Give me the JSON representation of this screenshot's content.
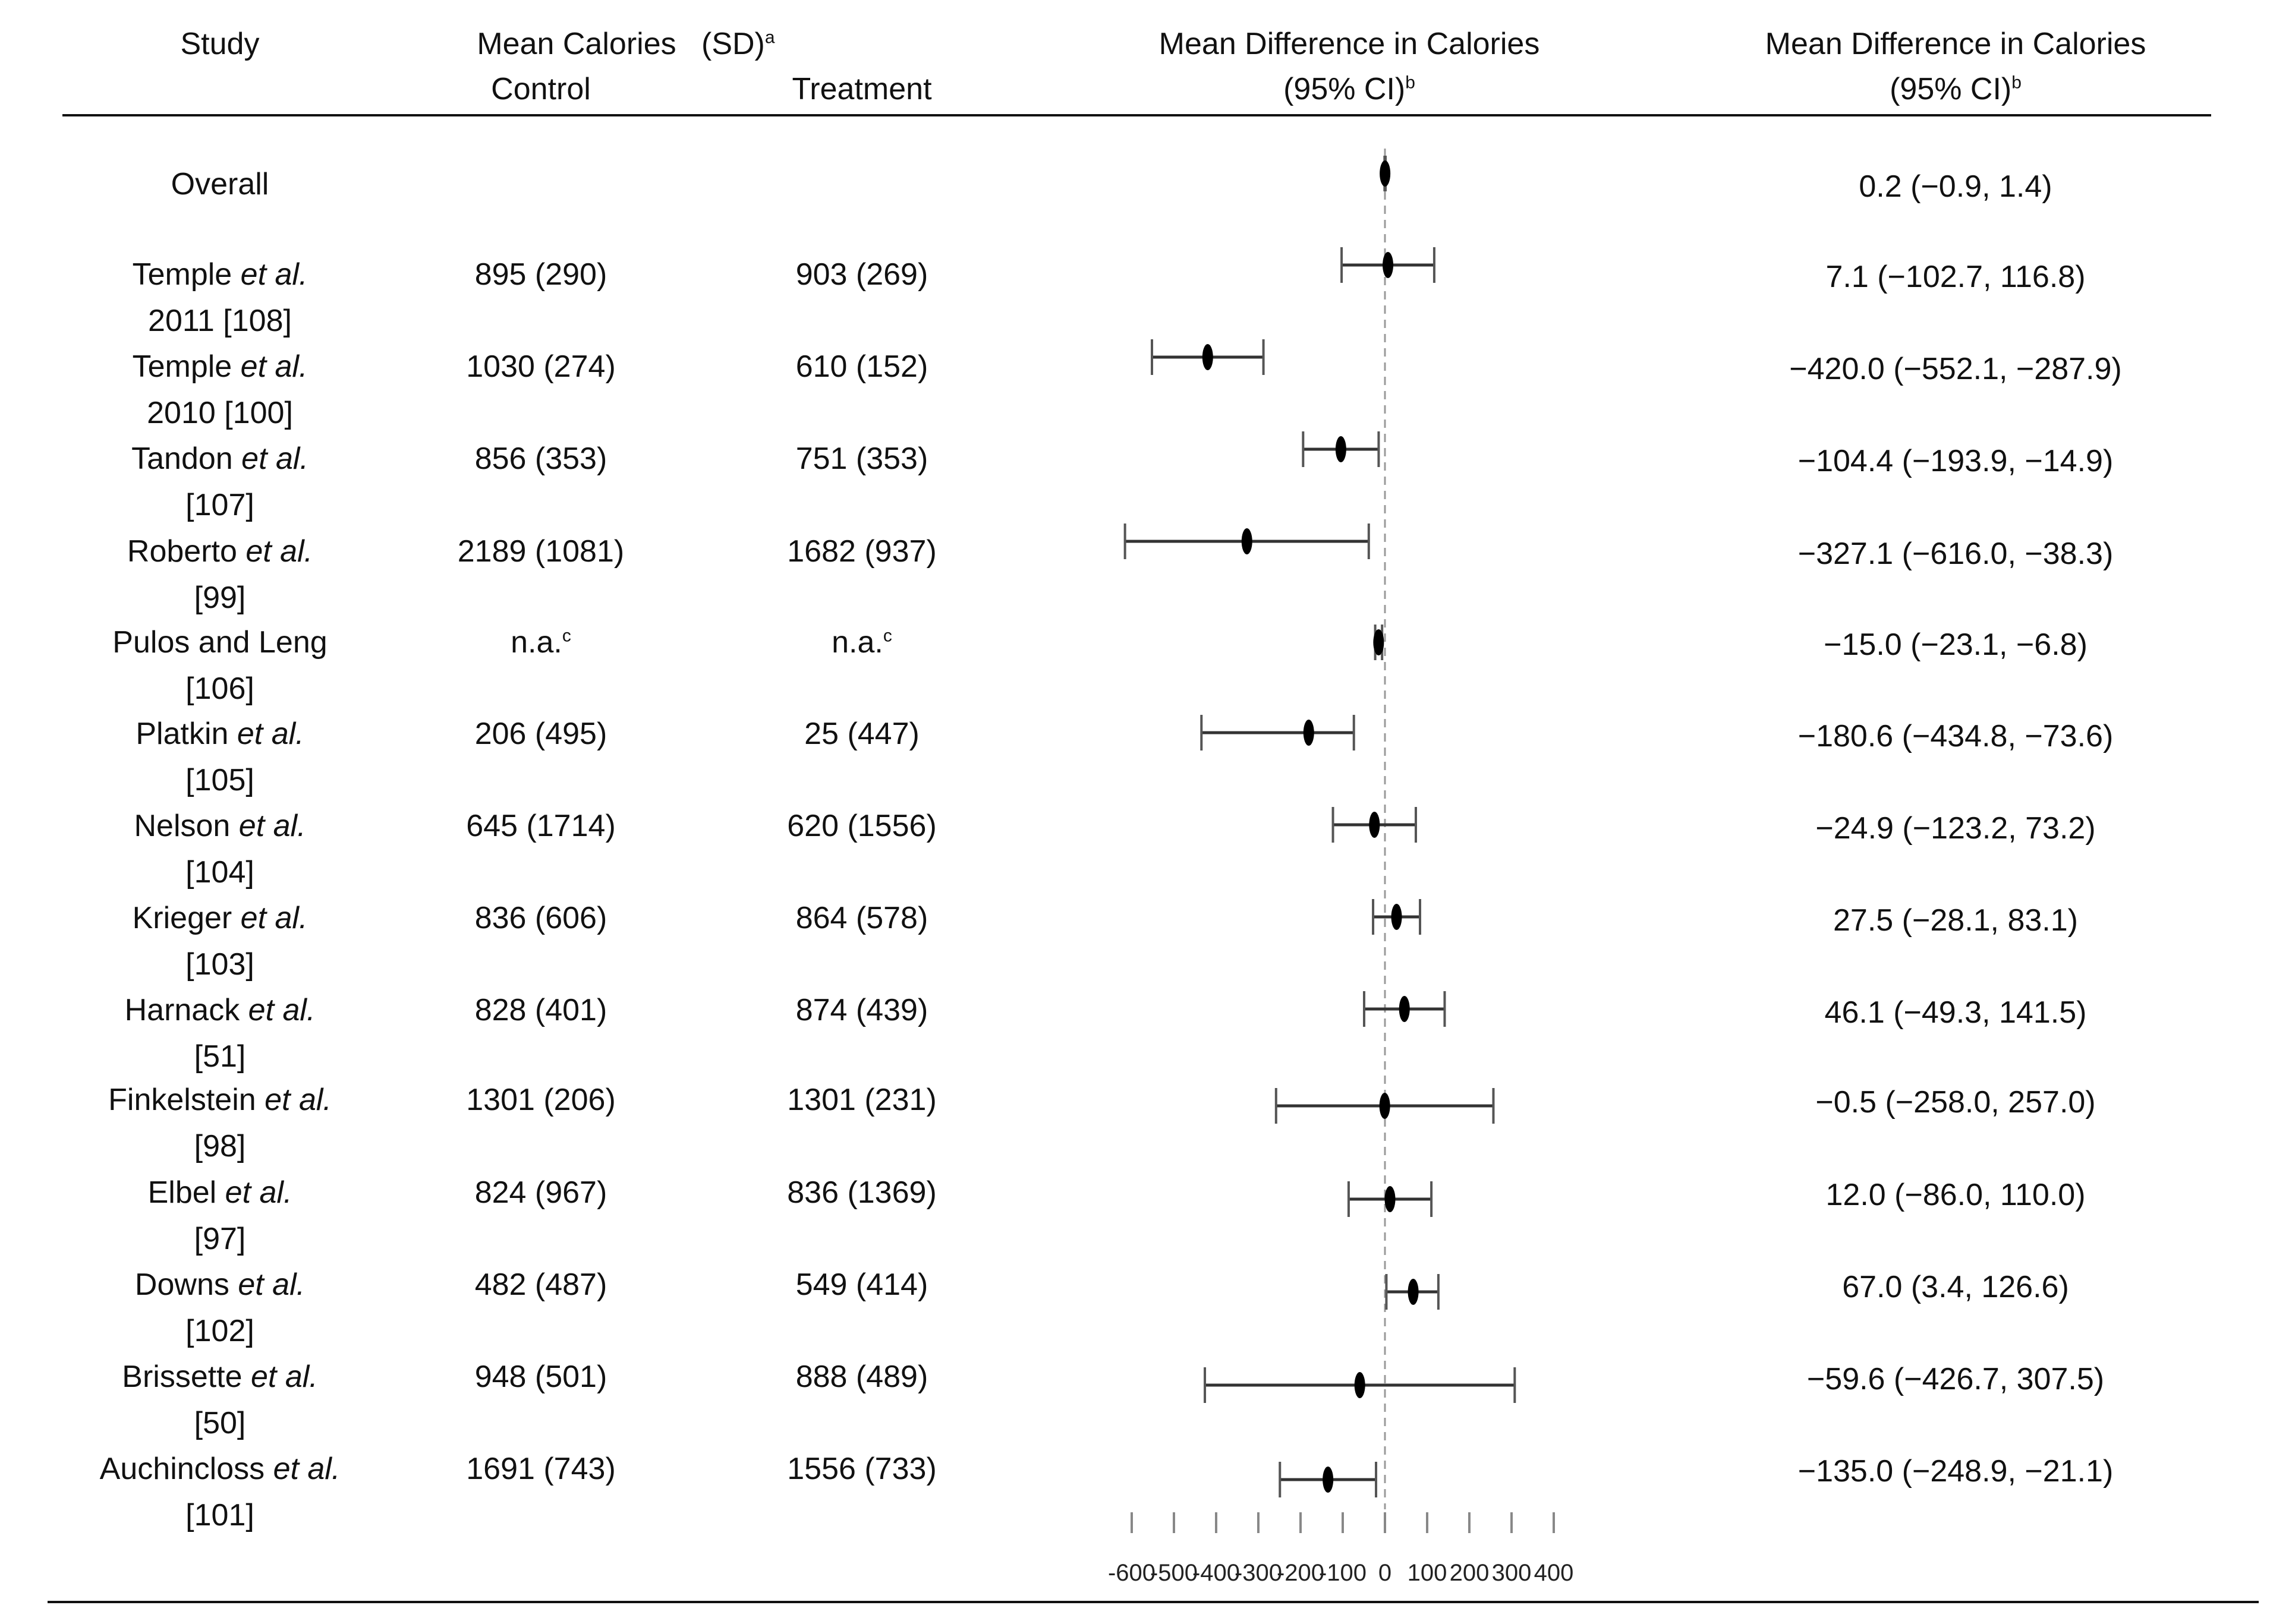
{
  "header": {
    "study": "Study",
    "mean_calories": "Mean Calories",
    "sd_label": "(SD)",
    "sd_sup": "a",
    "control": "Control",
    "treatment": "Treatment",
    "md_title": "Mean Difference in Calories",
    "md_ci": "(95% CI)",
    "md_sup": "b",
    "md_title_2": "Mean Difference in Calories",
    "md_ci_2": "(95% CI)",
    "md_sup_2": "b"
  },
  "rows": [
    {
      "study_a": "Overall",
      "study_i": "",
      "study_b": "",
      "control": "",
      "treatment": "",
      "ci_text": "0.2 (−0.9, 1.4)"
    },
    {
      "study_a": "Temple ",
      "study_i": "et al.",
      "study_b": "2011 [108]",
      "control": "895 (290)",
      "treatment": "903 (269)",
      "ci_text": "7.1 (−102.7, 116.8)"
    },
    {
      "study_a": "Temple ",
      "study_i": "et al.",
      "study_b": "2010 [100]",
      "control": "1030 (274)",
      "treatment": "610 (152)",
      "ci_text": "−420.0 (−552.1, −287.9)"
    },
    {
      "study_a": "Tandon ",
      "study_i": "et al.",
      "study_b": "[107]",
      "control": "856 (353)",
      "treatment": "751 (353)",
      "ci_text": "−104.4 (−193.9, −14.9)"
    },
    {
      "study_a": "Roberto ",
      "study_i": "et al.",
      "study_b": "[99]",
      "control": "2189 (1081)",
      "treatment": "1682 (937)",
      "ci_text": "−327.1 (−616.0, −38.3)"
    },
    {
      "study_a": "Pulos and Leng",
      "study_i": "",
      "study_b": "[106]",
      "control": "n.a.",
      "control_sup": "c",
      "treatment": "n.a.",
      "treatment_sup": "c",
      "ci_text": "−15.0 (−23.1, −6.8)"
    },
    {
      "study_a": "Platkin ",
      "study_i": "et al.",
      "study_b": "[105]",
      "control": "206 (495)",
      "treatment": "25 (447)",
      "ci_text": "−180.6 (−434.8, −73.6)"
    },
    {
      "study_a": "Nelson ",
      "study_i": "et al.",
      "study_b": "[104]",
      "control": "645 (1714)",
      "treatment": "620 (1556)",
      "ci_text": "−24.9 (−123.2, 73.2)"
    },
    {
      "study_a": "Krieger ",
      "study_i": "et al.",
      "study_b": "[103]",
      "control": "836 (606)",
      "treatment": "864 (578)",
      "ci_text": "27.5 (−28.1, 83.1)"
    },
    {
      "study_a": "Harnack ",
      "study_i": "et al.",
      "study_b": "[51]",
      "control": "828 (401)",
      "treatment": "874 (439)",
      "ci_text": "46.1 (−49.3, 141.5)"
    },
    {
      "study_a": "Finkelstein ",
      "study_i": "et al.",
      "study_b": "[98]",
      "control": "1301 (206)",
      "treatment": "1301 (231)",
      "ci_text": "−0.5 (−258.0, 257.0)"
    },
    {
      "study_a": "Elbel ",
      "study_i": "et al.",
      "study_b": "[97]",
      "control": "824 (967)",
      "treatment": "836 (1369)",
      "ci_text": "12.0 (−86.0, 110.0)"
    },
    {
      "study_a": "Downs ",
      "study_i": "et al.",
      "study_b": "[102]",
      "control": "482 (487)",
      "treatment": "549 (414)",
      "ci_text": "67.0 (3.4, 126.6)"
    },
    {
      "study_a": "Brissette ",
      "study_i": "et al.",
      "study_b": "[50]",
      "control": "948 (501)",
      "treatment": "888 (489)",
      "ci_text": "−59.6 (−426.7, 307.5)"
    },
    {
      "study_a": "Auchincloss ",
      "study_i": "et al.",
      "study_b": "[101]",
      "control": "1691 (743)",
      "treatment": "1556 (733)",
      "ci_text": "−135.0 (−248.9, −21.1)"
    }
  ],
  "chart_data": {
    "type": "forest",
    "title": "Mean Difference in Calories (95% CI)",
    "xlabel": "",
    "ylabel": "",
    "xlim": [
      -600,
      400
    ],
    "ticks": [
      -600,
      -500,
      -400,
      -300,
      -200,
      -100,
      0,
      100,
      200,
      300,
      400
    ],
    "tick_labels": [
      "-600",
      "-500",
      "-400",
      "-300",
      "-200",
      "-100",
      "0",
      "100",
      "200",
      "300",
      "400"
    ],
    "reference_line": 0,
    "categories": [
      "Overall",
      "Temple et al. 2011 [108]",
      "Temple et al. 2010 [100]",
      "Tandon et al. [107]",
      "Roberto et al. [99]",
      "Pulos and Leng [106]",
      "Platkin et al. [105]",
      "Nelson et al. [104]",
      "Krieger et al. [103]",
      "Harnack et al. [51]",
      "Finkelstein et al. [98]",
      "Elbel et al. [97]",
      "Downs et al. [102]",
      "Brissette et al. [50]",
      "Auchincloss et al. [101]"
    ],
    "estimates": [
      0.2,
      7.1,
      -420.0,
      -104.4,
      -327.1,
      -15.0,
      -180.6,
      -24.9,
      27.5,
      46.1,
      -0.5,
      12.0,
      67.0,
      -59.6,
      -135.0
    ],
    "lower": [
      -0.9,
      -102.7,
      -552.1,
      -193.9,
      -616.0,
      -23.1,
      -434.8,
      -123.2,
      -28.1,
      -49.3,
      -258.0,
      -86.0,
      3.4,
      -426.7,
      -248.9
    ],
    "upper": [
      1.4,
      116.8,
      -287.9,
      -14.9,
      -38.3,
      -6.8,
      -73.6,
      73.2,
      83.1,
      141.5,
      257.0,
      110.0,
      126.6,
      307.5,
      -21.1
    ]
  }
}
